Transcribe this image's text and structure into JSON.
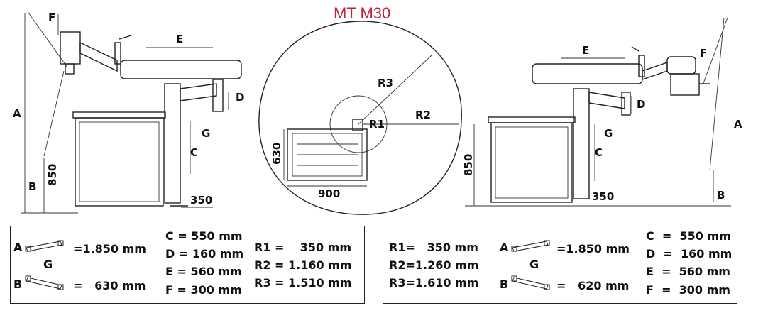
{
  "title": "MT M30",
  "left_view": {
    "F": "F",
    "E": "E",
    "A": "A",
    "D": "D",
    "G": "G",
    "C": "C",
    "B": "B",
    "h850": "850",
    "w350": "350"
  },
  "top_view": {
    "R3": "R3",
    "R1": "R1",
    "R2": "R2",
    "d630": "630",
    "d900": "900"
  },
  "right_view": {
    "E": "E",
    "F": "F",
    "D": "D",
    "G": "G",
    "C": "C",
    "A": "A",
    "B": "B",
    "h850": "850",
    "w350": "350"
  },
  "left_table": {
    "a_label": "A",
    "a_value": "=1.850 mm",
    "g_label": "G",
    "b_label": "B",
    "b_value": "=   630 mm",
    "c": "C = 550 mm",
    "d": "D = 160 mm",
    "e": "E = 560 mm",
    "f": "F = 300 mm",
    "r1": "R1 =    350 mm",
    "r2": "R2 = 1.160 mm",
    "r3": "R3 = 1.510 mm"
  },
  "right_table": {
    "r1": "R1=   350 mm",
    "r2": "R2=1.260 mm",
    "r3": "R3=1.610 mm",
    "a_label": "A",
    "a_value": "=1.850 mm",
    "g_label": "G",
    "b_label": "B",
    "b_value": "=   620 mm",
    "c": "C  =  550 mm",
    "d": "D  =  160 mm",
    "e": "E  =  560 mm",
    "f": "F  =  300 mm"
  },
  "colors": {
    "title": "#c0203a",
    "line": "#222222"
  }
}
